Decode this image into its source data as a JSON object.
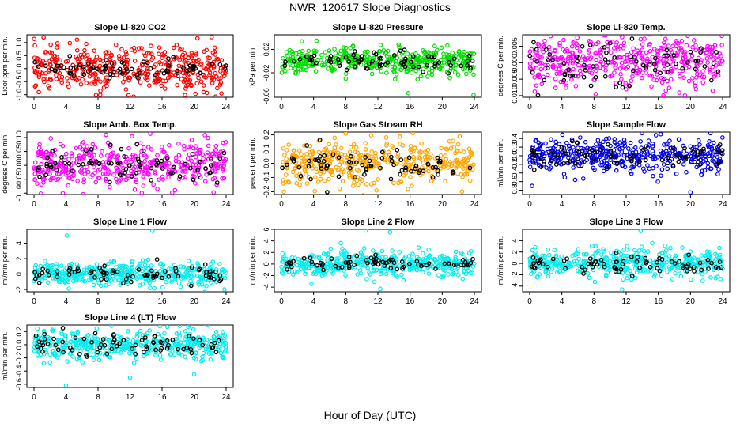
{
  "figure": {
    "title": "NWR_120617  Slope Diagnostics",
    "xlabel": "Hour of Day (UTC)"
  },
  "chart_data": [
    {
      "type": "scatter",
      "title": "Slope Li-820 CO2",
      "ylabel": "Licor ppm per min.",
      "color": "#ff0000",
      "xlim": [
        0,
        24
      ],
      "ylim": [
        -1.1,
        1.3
      ],
      "yticks": [
        "-1.0",
        "-0.5",
        "0.0",
        "0.5",
        "1.0"
      ],
      "ytick_values": [
        -1.0,
        -0.5,
        0.0,
        0.5,
        1.0
      ],
      "xticks": [
        "0",
        "4",
        "8",
        "12",
        "16",
        "20",
        "24"
      ],
      "spread": 0.42,
      "outliers": [
        {
          "x": 1.2,
          "y": 1.2
        },
        {
          "x": 0.6,
          "y": -0.9
        },
        {
          "x": 8.3,
          "y": -0.85
        }
      ],
      "black_series_spread": 0.2
    },
    {
      "type": "scatter",
      "title": "Slope Li-820 Pressure",
      "ylabel": "kPa per min.",
      "color": "#00dd00",
      "xlim": [
        0,
        24
      ],
      "ylim": [
        -0.062,
        0.045
      ],
      "yticks": [
        "-0.06",
        "-0.02",
        "0.02"
      ],
      "ytick_values": [
        -0.06,
        -0.02,
        0.02
      ],
      "xticks": [
        "0",
        "4",
        "8",
        "12",
        "16",
        "20",
        "24"
      ],
      "spread": 0.011,
      "outliers": [
        {
          "x": 15.8,
          "y": -0.055
        },
        {
          "x": 23.9,
          "y": -0.058
        },
        {
          "x": 8.0,
          "y": -0.03
        }
      ],
      "black_series_spread": 0.008
    },
    {
      "type": "scatter",
      "title": "Slope Li-820 Temp.",
      "ylabel": "degrees C per min.",
      "color": "#ff00ff",
      "xlim": [
        0,
        24
      ],
      "ylim": [
        -0.0105,
        0.0085
      ],
      "yticks": [
        "-0.010",
        "-0.005",
        "0.000",
        "0.005"
      ],
      "ytick_values": [
        -0.01,
        -0.005,
        0.0,
        0.005
      ],
      "xticks": [
        "0",
        "4",
        "8",
        "12",
        "16",
        "20",
        "24"
      ],
      "spread": 0.0038,
      "outliers": [
        {
          "x": 8.2,
          "y": -0.0095
        },
        {
          "x": 11.5,
          "y": 0.0078
        }
      ],
      "black_series_spread": 0.0035
    },
    {
      "type": "scatter",
      "title": "Slope Amb. Box Temp.",
      "ylabel": "degrees C per min.",
      "color": "#ff00ff",
      "xlim": [
        0,
        24
      ],
      "ylim": [
        -0.105,
        0.12
      ],
      "yticks": [
        "-0.10",
        "-0.05",
        "0.00",
        "0.05",
        "0.10"
      ],
      "ytick_values": [
        -0.1,
        -0.05,
        0.0,
        0.05,
        0.1
      ],
      "xticks": [
        "0",
        "4",
        "8",
        "12",
        "16",
        "20",
        "24"
      ],
      "spread": 0.042,
      "outliers": [
        {
          "x": 3.6,
          "y": -0.1
        },
        {
          "x": 9.0,
          "y": 0.11
        }
      ],
      "black_series_spread": 0.035
    },
    {
      "type": "scatter",
      "title": "Slope Gas Stream RH",
      "ylabel": "percent per min.",
      "color": "#ffa500",
      "xlim": [
        0,
        24
      ],
      "ylim": [
        -0.22,
        0.22
      ],
      "yticks": [
        "-0.2",
        "-0.1",
        "0.0",
        "0.1",
        "0.2"
      ],
      "ytick_values": [
        -0.2,
        -0.1,
        0.0,
        0.1,
        0.2
      ],
      "xticks": [
        "0",
        "4",
        "8",
        "12",
        "16",
        "20",
        "24"
      ],
      "spread": 0.075,
      "outliers": [
        {
          "x": 0.3,
          "y": -0.2
        },
        {
          "x": 8.0,
          "y": 0.21
        }
      ],
      "black_series_spread": 0.06
    },
    {
      "type": "scatter",
      "title": "Slope Sample Flow",
      "ylabel": "ml/min per min.",
      "color": "#0000ee",
      "xlim": [
        0,
        24
      ],
      "ylim": [
        -0.9,
        0.55
      ],
      "yticks": [
        "-0.8",
        "-0.6",
        "-0.4",
        "-0.2",
        "0.0",
        "0.2",
        "0.4"
      ],
      "ytick_values": [
        -0.8,
        -0.6,
        -0.4,
        -0.2,
        0.0,
        0.2,
        0.4
      ],
      "xticks": [
        "0",
        "4",
        "8",
        "12",
        "16",
        "20",
        "24"
      ],
      "spread": 0.2,
      "outliers": [
        {
          "x": 20.0,
          "y": -0.85
        },
        {
          "x": 0.3,
          "y": -0.7
        },
        {
          "x": 16.3,
          "y": 0.5
        }
      ],
      "black_series_spread": 0.15
    },
    {
      "type": "scatter",
      "title": "Slope Line 1 Flow",
      "ylabel": "ml/min per min.",
      "color": "#00eeee",
      "xlim": [
        0,
        24
      ],
      "ylim": [
        -2.3,
        5.8
      ],
      "yticks": [
        "-2",
        "0",
        "2",
        "4"
      ],
      "ytick_values": [
        -2,
        0,
        2,
        4
      ],
      "xticks": [
        "0",
        "4",
        "8",
        "12",
        "16",
        "20",
        "24"
      ],
      "spread": 0.75,
      "outliers": [
        {
          "x": 4.1,
          "y": 5.0
        },
        {
          "x": 14.8,
          "y": 5.6
        },
        {
          "x": 23.8,
          "y": -2.0
        }
      ],
      "black_series_spread": 0.5
    },
    {
      "type": "scatter",
      "title": "Slope Line 2 Flow",
      "ylabel": "ml/min per min.",
      "color": "#00eeee",
      "xlim": [
        0,
        24
      ],
      "ylim": [
        -4.8,
        6.0
      ],
      "yticks": [
        "-4",
        "-2",
        "0",
        "2",
        "4",
        "6"
      ],
      "ytick_values": [
        -4,
        -2,
        0,
        2,
        4,
        6
      ],
      "xticks": [
        "0",
        "4",
        "8",
        "12",
        "16",
        "20",
        "24"
      ],
      "spread": 1.1,
      "outliers": [
        {
          "x": 10.5,
          "y": 5.8
        },
        {
          "x": 12.3,
          "y": -4.3
        },
        {
          "x": 13.5,
          "y": 5.5
        }
      ],
      "black_series_spread": 0.7
    },
    {
      "type": "scatter",
      "title": "Slope Line 3 Flow",
      "ylabel": "ml/min per min.",
      "color": "#00eeee",
      "xlim": [
        0,
        24
      ],
      "ylim": [
        -5.0,
        6.0
      ],
      "yticks": [
        "-4",
        "-2",
        "0",
        "2",
        "4"
      ],
      "ytick_values": [
        -4,
        -2,
        0,
        2,
        4
      ],
      "xticks": [
        "0",
        "4",
        "8",
        "12",
        "16",
        "20",
        "24"
      ],
      "spread": 1.2,
      "outliers": [
        {
          "x": 11.5,
          "y": -4.6
        },
        {
          "x": 13.8,
          "y": 5.7
        }
      ],
      "black_series_spread": 0.8
    },
    {
      "type": "scatter",
      "title": "Slope Line 4 (LT) Flow",
      "ylabel": "ml/min per min.",
      "color": "#00eeee",
      "xlim": [
        0,
        24
      ],
      "ylim": [
        -0.65,
        0.3
      ],
      "yticks": [
        "-0.6",
        "-0.4",
        "-0.2",
        "0.0",
        "0.2"
      ],
      "ytick_values": [
        -0.6,
        -0.4,
        -0.2,
        0.0,
        0.2
      ],
      "xticks": [
        "0",
        "4",
        "8",
        "12",
        "16",
        "20",
        "24"
      ],
      "spread": 0.11,
      "outliers": [
        {
          "x": 4.0,
          "y": -0.62
        },
        {
          "x": 12.0,
          "y": -0.5
        },
        {
          "x": 20.0,
          "y": -0.45
        }
      ],
      "black_series_spread": 0.09
    }
  ]
}
